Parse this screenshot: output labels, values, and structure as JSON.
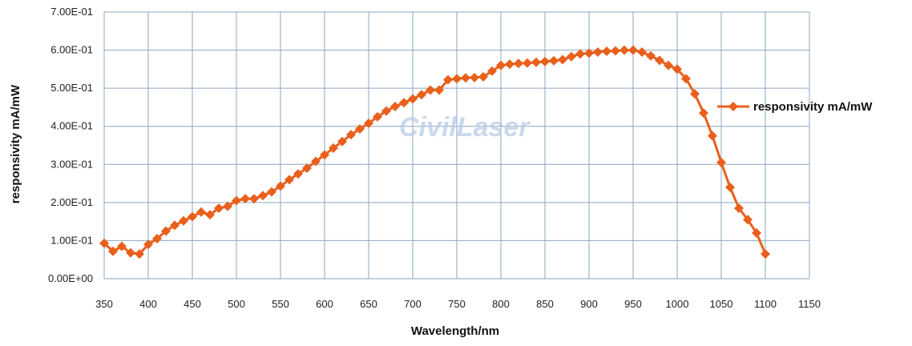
{
  "watermark": "CivilLaser",
  "chart_data": {
    "type": "line",
    "title": "",
    "xlabel": "Wavelength/nm",
    "ylabel": "responsivity mA/mW",
    "xlim": [
      350,
      1150
    ],
    "ylim": [
      0,
      0.7
    ],
    "x_ticks": [
      "350",
      "400",
      "450",
      "500",
      "550",
      "600",
      "650",
      "700",
      "750",
      "800",
      "850",
      "900",
      "950",
      "1000",
      "1050",
      "1100",
      "1150"
    ],
    "y_ticks": [
      "0.00E+00",
      "1.00E-01",
      "2.00E-01",
      "3.00E-01",
      "4.00E-01",
      "5.00E-01",
      "6.00E-01",
      "7.00E-01"
    ],
    "grid": true,
    "legend_position": "right",
    "series": [
      {
        "name": "responsivity mA/mW",
        "color": "#e8601c",
        "marker": "diamond",
        "points": [
          [
            350,
            0.093
          ],
          [
            360,
            0.072
          ],
          [
            370,
            0.085
          ],
          [
            380,
            0.068
          ],
          [
            390,
            0.065
          ],
          [
            400,
            0.09
          ],
          [
            410,
            0.105
          ],
          [
            420,
            0.125
          ],
          [
            430,
            0.14
          ],
          [
            440,
            0.152
          ],
          [
            450,
            0.163
          ],
          [
            460,
            0.175
          ],
          [
            470,
            0.168
          ],
          [
            480,
            0.185
          ],
          [
            490,
            0.19
          ],
          [
            500,
            0.205
          ],
          [
            510,
            0.21
          ],
          [
            520,
            0.21
          ],
          [
            530,
            0.218
          ],
          [
            540,
            0.228
          ],
          [
            550,
            0.243
          ],
          [
            560,
            0.26
          ],
          [
            570,
            0.275
          ],
          [
            580,
            0.29
          ],
          [
            590,
            0.308
          ],
          [
            600,
            0.325
          ],
          [
            610,
            0.343
          ],
          [
            620,
            0.36
          ],
          [
            630,
            0.378
          ],
          [
            640,
            0.393
          ],
          [
            650,
            0.408
          ],
          [
            660,
            0.425
          ],
          [
            670,
            0.44
          ],
          [
            680,
            0.452
          ],
          [
            690,
            0.462
          ],
          [
            700,
            0.472
          ],
          [
            710,
            0.483
          ],
          [
            720,
            0.495
          ],
          [
            730,
            0.495
          ],
          [
            740,
            0.522
          ],
          [
            750,
            0.525
          ],
          [
            760,
            0.527
          ],
          [
            770,
            0.528
          ],
          [
            780,
            0.53
          ],
          [
            790,
            0.545
          ],
          [
            800,
            0.56
          ],
          [
            810,
            0.563
          ],
          [
            820,
            0.565
          ],
          [
            830,
            0.566
          ],
          [
            840,
            0.568
          ],
          [
            850,
            0.57
          ],
          [
            860,
            0.572
          ],
          [
            870,
            0.575
          ],
          [
            880,
            0.583
          ],
          [
            890,
            0.59
          ],
          [
            900,
            0.592
          ],
          [
            910,
            0.595
          ],
          [
            920,
            0.597
          ],
          [
            930,
            0.598
          ],
          [
            940,
            0.6
          ],
          [
            950,
            0.6
          ],
          [
            960,
            0.595
          ],
          [
            970,
            0.585
          ],
          [
            980,
            0.573
          ],
          [
            990,
            0.56
          ],
          [
            1000,
            0.55
          ],
          [
            1010,
            0.525
          ],
          [
            1020,
            0.485
          ],
          [
            1030,
            0.435
          ],
          [
            1040,
            0.375
          ],
          [
            1050,
            0.305
          ],
          [
            1060,
            0.24
          ],
          [
            1070,
            0.185
          ],
          [
            1080,
            0.155
          ],
          [
            1090,
            0.12
          ],
          [
            1100,
            0.065
          ]
        ]
      }
    ]
  }
}
